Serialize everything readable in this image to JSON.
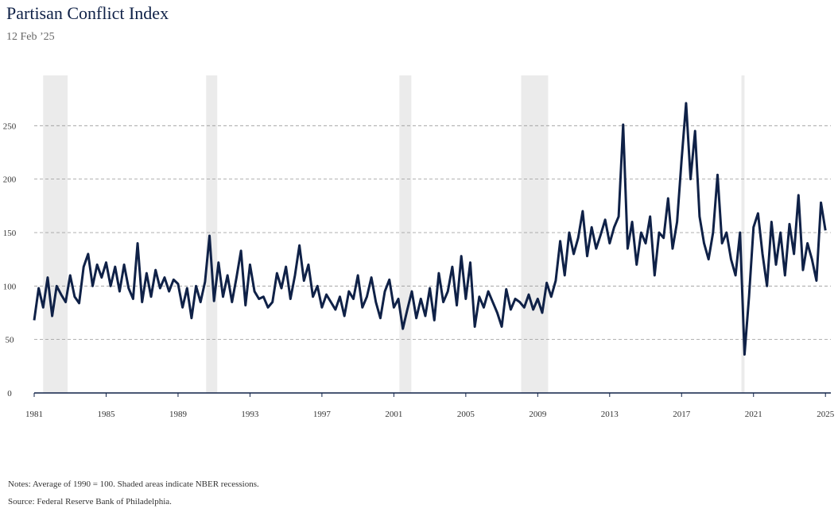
{
  "chart_data": {
    "type": "line",
    "title": "Partisan Conflict Index",
    "subtitle": "12 Feb ’25",
    "notes": "Notes: Average of 1990 = 100. Shaded areas indicate NBER recessions.",
    "source": "Source: Federal Reserve Bank of Philadelphia.",
    "color": "#0f2147",
    "shade_color": "#ebebeb",
    "grid": true,
    "xlim": [
      1981,
      2025.3
    ],
    "ylim": [
      0,
      297
    ],
    "xticks": [
      1981,
      1985,
      1989,
      1993,
      1997,
      2001,
      2005,
      2009,
      2013,
      2017,
      2021,
      2025
    ],
    "yticks": [
      0,
      50,
      100,
      150,
      200,
      250
    ],
    "recessions": [
      [
        1981.5,
        1982.86
      ],
      [
        1990.56,
        1991.18
      ],
      [
        2001.31,
        2001.97
      ],
      [
        2008.08,
        2009.58
      ],
      [
        2020.33,
        2020.5
      ]
    ],
    "x": [
      1981,
      1981.25,
      1981.5,
      1981.75,
      1982,
      1982.25,
      1982.5,
      1982.75,
      1983,
      1983.25,
      1983.5,
      1983.75,
      1984,
      1984.25,
      1984.5,
      1984.75,
      1985,
      1985.25,
      1985.5,
      1985.75,
      1986,
      1986.25,
      1986.5,
      1986.75,
      1987,
      1987.25,
      1987.5,
      1987.75,
      1988,
      1988.25,
      1988.5,
      1988.75,
      1989,
      1989.25,
      1989.5,
      1989.75,
      1990,
      1990.25,
      1990.5,
      1990.75,
      1991,
      1991.25,
      1991.5,
      1991.75,
      1992,
      1992.25,
      1992.5,
      1992.75,
      1993,
      1993.25,
      1993.5,
      1993.75,
      1994,
      1994.25,
      1994.5,
      1994.75,
      1995,
      1995.25,
      1995.5,
      1995.75,
      1996,
      1996.25,
      1996.5,
      1996.75,
      1997,
      1997.25,
      1997.5,
      1997.75,
      1998,
      1998.25,
      1998.5,
      1998.75,
      1999,
      1999.25,
      1999.5,
      1999.75,
      2000,
      2000.25,
      2000.5,
      2000.75,
      2001,
      2001.25,
      2001.5,
      2001.75,
      2002,
      2002.25,
      2002.5,
      2002.75,
      2003,
      2003.25,
      2003.5,
      2003.75,
      2004,
      2004.25,
      2004.5,
      2004.75,
      2005,
      2005.25,
      2005.5,
      2005.75,
      2006,
      2006.25,
      2006.5,
      2006.75,
      2007,
      2007.25,
      2007.5,
      2007.75,
      2008,
      2008.25,
      2008.5,
      2008.75,
      2009,
      2009.25,
      2009.5,
      2009.75,
      2010,
      2010.25,
      2010.5,
      2010.75,
      2011,
      2011.25,
      2011.5,
      2011.75,
      2012,
      2012.25,
      2012.5,
      2012.75,
      2013,
      2013.25,
      2013.5,
      2013.75,
      2014,
      2014.25,
      2014.5,
      2014.75,
      2015,
      2015.25,
      2015.5,
      2015.75,
      2016,
      2016.25,
      2016.5,
      2016.75,
      2017,
      2017.25,
      2017.5,
      2017.75,
      2018,
      2018.25,
      2018.5,
      2018.75,
      2019,
      2019.25,
      2019.5,
      2019.75,
      2020,
      2020.25,
      2020.5,
      2020.75,
      2021,
      2021.25,
      2021.5,
      2021.75,
      2022,
      2022.25,
      2022.5,
      2022.75,
      2023,
      2023.25,
      2023.5,
      2023.75,
      2024,
      2024.25,
      2024.5,
      2024.75,
      2025
    ],
    "values": [
      68,
      98,
      80,
      108,
      72,
      100,
      92,
      85,
      110,
      90,
      84,
      118,
      130,
      100,
      120,
      108,
      122,
      100,
      118,
      95,
      120,
      98,
      88,
      140,
      85,
      112,
      90,
      115,
      98,
      108,
      95,
      106,
      102,
      80,
      98,
      70,
      100,
      85,
      104,
      147,
      86,
      122,
      90,
      110,
      85,
      108,
      133,
      82,
      120,
      95,
      88,
      90,
      80,
      85,
      112,
      98,
      118,
      88,
      110,
      138,
      105,
      120,
      90,
      100,
      80,
      92,
      85,
      78,
      90,
      72,
      95,
      88,
      110,
      80,
      90,
      108,
      85,
      70,
      95,
      106,
      80,
      88,
      60,
      78,
      95,
      70,
      88,
      72,
      98,
      68,
      112,
      85,
      95,
      118,
      82,
      128,
      88,
      122,
      62,
      90,
      80,
      95,
      85,
      75,
      62,
      97,
      78,
      88,
      85,
      80,
      92,
      78,
      88,
      75,
      103,
      90,
      105,
      142,
      110,
      150,
      130,
      145,
      170,
      128,
      155,
      135,
      148,
      162,
      140,
      155,
      165,
      251,
      135,
      160,
      120,
      150,
      140,
      165,
      110,
      150,
      145,
      182,
      135,
      160,
      218,
      271,
      200,
      245,
      165,
      140,
      125,
      150,
      204,
      140,
      150,
      125,
      110,
      150,
      36,
      90,
      155,
      168,
      130,
      100,
      160,
      120,
      150,
      110,
      158,
      130,
      185,
      115,
      140,
      125,
      105,
      178,
      152
    ]
  }
}
